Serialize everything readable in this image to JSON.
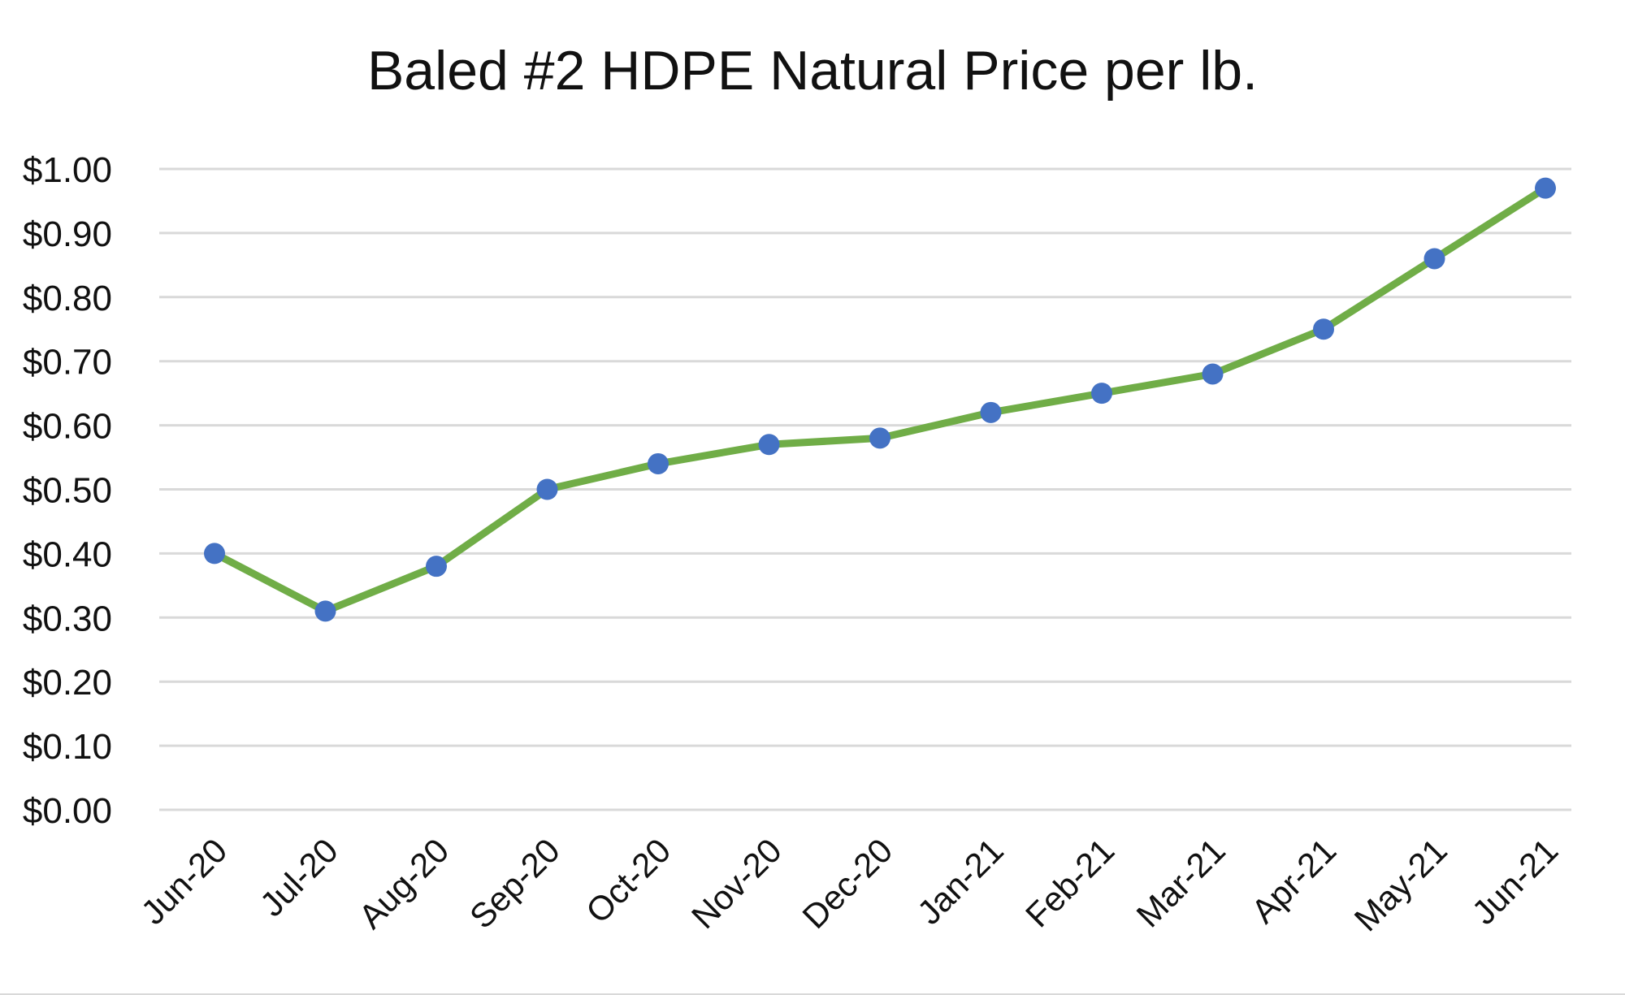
{
  "chart_data": {
    "type": "line",
    "title": "Baled #2 HDPE Natural Price per lb.",
    "xlabel": "",
    "ylabel": "",
    "categories": [
      "Jun-20",
      "Jul-20",
      "Aug-20",
      "Sep-20",
      "Oct-20",
      "Nov-20",
      "Dec-20",
      "Jan-21",
      "Feb-21",
      "Mar-21",
      "Apr-21",
      "May-21",
      "Jun-21"
    ],
    "series": [
      {
        "values": [
          0.4,
          0.31,
          0.38,
          0.5,
          0.54,
          0.57,
          0.58,
          0.62,
          0.65,
          0.68,
          0.75,
          0.86,
          0.97
        ]
      }
    ],
    "ylim": [
      0,
      1.0
    ],
    "yticks": [
      "$0.00",
      "$0.10",
      "$0.20",
      "$0.30",
      "$0.40",
      "$0.50",
      "$0.60",
      "$0.70",
      "$0.80",
      "$0.90",
      "$1.00"
    ],
    "grid": true,
    "legend": "none",
    "colors": {
      "line": "#70ad47",
      "marker": "#4472c4",
      "grid": "#d9d9d9",
      "text": "#111111"
    }
  }
}
